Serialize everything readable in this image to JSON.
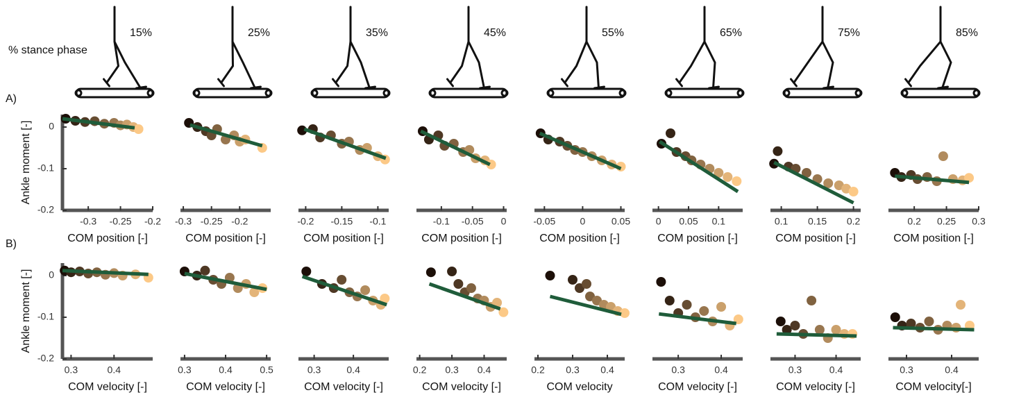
{
  "stance_label": "% stance phase",
  "phases": [
    "15%",
    "25%",
    "35%",
    "45%",
    "55%",
    "65%",
    "75%",
    "85%"
  ],
  "row_labels": [
    "A)",
    "B)"
  ],
  "chart_data": [
    {
      "type": "scatter",
      "y_label": "Ankle moment [-]",
      "x_label": "COM position [-]",
      "xlim": [
        -0.34,
        -0.2
      ],
      "xticks": [
        -0.3,
        -0.25,
        -0.2
      ],
      "ylim": [
        -0.2,
        0.03
      ],
      "yticks": [
        0,
        -0.1,
        -0.2
      ],
      "colormap": [
        "#1c0f08",
        "#fcc987"
      ],
      "fit_color": "#1f5c3a",
      "x": [
        -0.335,
        -0.32,
        -0.305,
        -0.29,
        -0.275,
        -0.26,
        -0.25,
        -0.24,
        -0.23,
        -0.222
      ],
      "y": [
        0.02,
        0.015,
        0.012,
        0.014,
        0.008,
        0.01,
        0.004,
        0.006,
        0.0,
        -0.005
      ],
      "fit": {
        "x": [
          -0.34,
          -0.228
        ],
        "y": [
          0.02,
          -0.002
        ]
      }
    },
    {
      "type": "scatter",
      "x_label": "COM position [-]",
      "xlim": [
        -0.305,
        -0.145
      ],
      "xticks": [
        -0.3,
        -0.25,
        -0.2
      ],
      "ylim": [
        -0.2,
        0.03
      ],
      "colormap": [
        "#1c0f08",
        "#fcc987"
      ],
      "fit_color": "#1f5c3a",
      "x": [
        -0.29,
        -0.275,
        -0.26,
        -0.25,
        -0.24,
        -0.225,
        -0.21,
        -0.2,
        -0.19,
        -0.16
      ],
      "y": [
        0.01,
        0.0,
        -0.01,
        -0.02,
        -0.005,
        -0.03,
        -0.02,
        -0.035,
        -0.03,
        -0.05
      ],
      "fit": {
        "x": [
          -0.288,
          -0.16
        ],
        "y": [
          0.005,
          -0.045
        ]
      }
    },
    {
      "type": "scatter",
      "x_label": "COM position [-]",
      "xlim": [
        -0.21,
        -0.085
      ],
      "xticks": [
        -0.2,
        -0.15,
        -0.1
      ],
      "ylim": [
        -0.2,
        0.03
      ],
      "colormap": [
        "#1c0f08",
        "#fcc987"
      ],
      "fit_color": "#1f5c3a",
      "x": [
        -0.205,
        -0.19,
        -0.18,
        -0.165,
        -0.15,
        -0.14,
        -0.125,
        -0.115,
        -0.1,
        -0.09
      ],
      "y": [
        -0.008,
        -0.005,
        -0.025,
        -0.02,
        -0.04,
        -0.035,
        -0.055,
        -0.05,
        -0.07,
        -0.078
      ],
      "fit": {
        "x": [
          -0.202,
          -0.089
        ],
        "y": [
          -0.005,
          -0.075
        ]
      }
    },
    {
      "type": "scatter",
      "x_label": "COM position [-]",
      "xlim": [
        -0.14,
        0.005
      ],
      "xticks": [
        -0.1,
        -0.05,
        0
      ],
      "ylim": [
        -0.2,
        0.03
      ],
      "colormap": [
        "#1c0f08",
        "#fcc987"
      ],
      "fit_color": "#1f5c3a",
      "x": [
        -0.13,
        -0.12,
        -0.105,
        -0.095,
        -0.08,
        -0.065,
        -0.055,
        -0.045,
        -0.03,
        -0.02
      ],
      "y": [
        -0.01,
        -0.03,
        -0.02,
        -0.045,
        -0.04,
        -0.06,
        -0.055,
        -0.075,
        -0.08,
        -0.09
      ],
      "fit": {
        "x": [
          -0.133,
          -0.022
        ],
        "y": [
          -0.01,
          -0.09
        ]
      }
    },
    {
      "type": "scatter",
      "x_label": "COM position [-]",
      "xlim": [
        -0.063,
        0.055
      ],
      "xticks": [
        -0.05,
        0,
        0.05
      ],
      "ylim": [
        -0.2,
        0.03
      ],
      "colormap": [
        "#1c0f08",
        "#fcc987"
      ],
      "fit_color": "#1f5c3a",
      "x": [
        -0.055,
        -0.045,
        -0.03,
        -0.02,
        -0.01,
        0.0,
        0.012,
        0.025,
        0.038,
        0.05
      ],
      "y": [
        -0.015,
        -0.03,
        -0.035,
        -0.045,
        -0.055,
        -0.06,
        -0.07,
        -0.08,
        -0.09,
        -0.095
      ],
      "fit": {
        "x": [
          -0.056,
          0.05
        ],
        "y": [
          -0.015,
          -0.1
        ]
      }
    },
    {
      "type": "scatter",
      "x_label": "COM position [-]",
      "xlim": [
        -0.01,
        0.14
      ],
      "xticks": [
        0,
        0.05,
        0.1
      ],
      "ylim": [
        -0.2,
        0.03
      ],
      "colormap": [
        "#1c0f08",
        "#fcc987"
      ],
      "fit_color": "#1f5c3a",
      "x": [
        0.005,
        0.02,
        0.03,
        0.045,
        0.055,
        0.07,
        0.085,
        0.1,
        0.115,
        0.13
      ],
      "y": [
        -0.04,
        -0.015,
        -0.06,
        -0.07,
        -0.08,
        -0.09,
        -0.1,
        -0.11,
        -0.12,
        -0.13
      ],
      "fit": {
        "x": [
          0.002,
          0.132
        ],
        "y": [
          -0.035,
          -0.155
        ]
      }
    },
    {
      "type": "scatter",
      "x_label": "COM position [-]",
      "xlim": [
        0.085,
        0.21
      ],
      "xticks": [
        0.1,
        0.15,
        0.2
      ],
      "ylim": [
        -0.2,
        0.03
      ],
      "colormap": [
        "#1c0f08",
        "#fcc987"
      ],
      "fit_color": "#1f5c3a",
      "x": [
        0.09,
        0.095,
        0.11,
        0.12,
        0.135,
        0.15,
        0.165,
        0.18,
        0.19,
        0.2
      ],
      "y": [
        -0.088,
        -0.058,
        -0.095,
        -0.1,
        -0.11,
        -0.125,
        -0.135,
        -0.14,
        -0.148,
        -0.155
      ],
      "fit": {
        "x": [
          0.09,
          0.2
        ],
        "y": [
          -0.085,
          -0.182
        ]
      }
    },
    {
      "type": "scatter",
      "x_label": "COM position [-]",
      "xlim": [
        0.16,
        0.3
      ],
      "xticks": [
        0.2,
        0.25,
        0.3
      ],
      "ylim": [
        -0.2,
        0.03
      ],
      "colormap": [
        "#1c0f08",
        "#fcc987"
      ],
      "fit_color": "#1f5c3a",
      "x": [
        0.17,
        0.18,
        0.195,
        0.205,
        0.22,
        0.235,
        0.245,
        0.26,
        0.275,
        0.285
      ],
      "y": [
        -0.11,
        -0.12,
        -0.115,
        -0.125,
        -0.12,
        -0.13,
        -0.07,
        -0.125,
        -0.128,
        -0.122
      ],
      "fit": {
        "x": [
          0.17,
          0.285
        ],
        "y": [
          -0.118,
          -0.133
        ]
      }
    },
    {
      "type": "scatter",
      "y_label": "Ankle moment [-]",
      "x_label": "COM velocity [-]",
      "xlim": [
        0.28,
        0.49
      ],
      "xticks": [
        0.3,
        0.4
      ],
      "ylim": [
        -0.2,
        0.03
      ],
      "yticks": [
        0,
        -0.1,
        -0.2
      ],
      "colormap": [
        "#1c0f08",
        "#fcc987"
      ],
      "fit_color": "#1f5c3a",
      "x": [
        0.285,
        0.3,
        0.32,
        0.34,
        0.36,
        0.38,
        0.4,
        0.42,
        0.45,
        0.48
      ],
      "y": [
        0.012,
        0.008,
        0.01,
        0.005,
        0.008,
        0.002,
        0.006,
        0.0,
        0.003,
        -0.005
      ],
      "fit": {
        "x": [
          0.28,
          0.48
        ],
        "y": [
          0.012,
          0.003
        ]
      }
    },
    {
      "type": "scatter",
      "x_label": "COM velocity [-]",
      "xlim": [
        0.29,
        0.51
      ],
      "xticks": [
        0.3,
        0.4,
        0.5
      ],
      "ylim": [
        -0.2,
        0.03
      ],
      "colormap": [
        "#1c0f08",
        "#fcc987"
      ],
      "fit_color": "#1f5c3a",
      "x": [
        0.3,
        0.33,
        0.35,
        0.37,
        0.39,
        0.41,
        0.43,
        0.45,
        0.47,
        0.49
      ],
      "y": [
        0.01,
        0.0,
        0.012,
        -0.01,
        -0.02,
        -0.005,
        -0.03,
        -0.02,
        -0.04,
        -0.03
      ],
      "fit": {
        "x": [
          0.3,
          0.5
        ],
        "y": [
          0.005,
          -0.033
        ]
      }
    },
    {
      "type": "scatter",
      "x_label": "COM velocity [-]",
      "xlim": [
        0.26,
        0.49
      ],
      "xticks": [
        0.3,
        0.4
      ],
      "ylim": [
        -0.2,
        0.03
      ],
      "colormap": [
        "#1c0f08",
        "#fcc987"
      ],
      "fit_color": "#1f5c3a",
      "x": [
        0.28,
        0.32,
        0.35,
        0.37,
        0.39,
        0.41,
        0.43,
        0.45,
        0.47,
        0.48
      ],
      "y": [
        0.01,
        -0.02,
        -0.03,
        -0.01,
        -0.04,
        -0.05,
        -0.035,
        -0.06,
        -0.07,
        -0.055
      ],
      "fit": {
        "x": [
          0.27,
          0.485
        ],
        "y": [
          -0.002,
          -0.07
        ]
      }
    },
    {
      "type": "scatter",
      "x_label": "COM velocity [-]",
      "xlim": [
        0.19,
        0.47
      ],
      "xticks": [
        0.2,
        0.3,
        0.4
      ],
      "ylim": [
        -0.2,
        0.03
      ],
      "colormap": [
        "#1c0f08",
        "#fcc987"
      ],
      "fit_color": "#1f5c3a",
      "x": [
        0.235,
        0.3,
        0.32,
        0.34,
        0.36,
        0.38,
        0.4,
        0.42,
        0.44,
        0.46
      ],
      "y": [
        0.008,
        0.01,
        -0.02,
        -0.04,
        -0.03,
        -0.055,
        -0.06,
        -0.075,
        -0.065,
        -0.088
      ],
      "fit": {
        "x": [
          0.23,
          0.45
        ],
        "y": [
          -0.02,
          -0.08
        ]
      }
    },
    {
      "type": "scatter",
      "x_label": "COM velocity",
      "xlim": [
        0.19,
        0.45
      ],
      "xticks": [
        0.2,
        0.3,
        0.4
      ],
      "ylim": [
        -0.2,
        0.03
      ],
      "colormap": [
        "#1c0f08",
        "#fcc987"
      ],
      "fit_color": "#1f5c3a",
      "x": [
        0.235,
        0.3,
        0.32,
        0.34,
        0.35,
        0.37,
        0.39,
        0.41,
        0.43,
        0.45
      ],
      "y": [
        0.0,
        -0.01,
        -0.03,
        -0.02,
        -0.05,
        -0.06,
        -0.07,
        -0.075,
        -0.085,
        -0.09
      ],
      "fit": {
        "x": [
          0.235,
          0.44
        ],
        "y": [
          -0.05,
          -0.093
        ]
      }
    },
    {
      "type": "scatter",
      "x_label": "COM velocity [-]",
      "xlim": [
        0.24,
        0.45
      ],
      "xticks": [
        0.3,
        0.4
      ],
      "ylim": [
        -0.2,
        0.03
      ],
      "colormap": [
        "#1c0f08",
        "#fcc987"
      ],
      "fit_color": "#1f5c3a",
      "x": [
        0.26,
        0.28,
        0.3,
        0.32,
        0.34,
        0.36,
        0.38,
        0.4,
        0.42,
        0.44
      ],
      "y": [
        -0.015,
        -0.06,
        -0.09,
        -0.07,
        -0.1,
        -0.085,
        -0.11,
        -0.075,
        -0.12,
        -0.105
      ],
      "fit": {
        "x": [
          0.255,
          0.435
        ],
        "y": [
          -0.092,
          -0.115
        ]
      }
    },
    {
      "type": "scatter",
      "x_label": "COM velocity [-]",
      "xlim": [
        0.24,
        0.46
      ],
      "xticks": [
        0.3,
        0.4
      ],
      "ylim": [
        -0.2,
        0.03
      ],
      "colormap": [
        "#1c0f08",
        "#fcc987"
      ],
      "fit_color": "#1f5c3a",
      "x": [
        0.265,
        0.28,
        0.3,
        0.32,
        0.34,
        0.36,
        0.38,
        0.4,
        0.42,
        0.44
      ],
      "y": [
        -0.11,
        -0.13,
        -0.12,
        -0.14,
        -0.06,
        -0.13,
        -0.15,
        -0.13,
        -0.14,
        -0.14
      ],
      "fit": {
        "x": [
          0.255,
          0.45
        ],
        "y": [
          -0.14,
          -0.145
        ]
      }
    },
    {
      "type": "scatter",
      "x_label": "COM velocity[-]",
      "xlim": [
        0.26,
        0.46
      ],
      "xticks": [
        0.3,
        0.4
      ],
      "ylim": [
        -0.2,
        0.03
      ],
      "colormap": [
        "#1c0f08",
        "#fcc987"
      ],
      "fit_color": "#1f5c3a",
      "x": [
        0.275,
        0.29,
        0.31,
        0.33,
        0.35,
        0.37,
        0.39,
        0.41,
        0.42,
        0.44
      ],
      "y": [
        -0.1,
        -0.12,
        -0.115,
        -0.125,
        -0.11,
        -0.13,
        -0.12,
        -0.125,
        -0.07,
        -0.12
      ],
      "fit": {
        "x": [
          0.27,
          0.45
        ],
        "y": [
          -0.125,
          -0.13
        ]
      }
    }
  ]
}
